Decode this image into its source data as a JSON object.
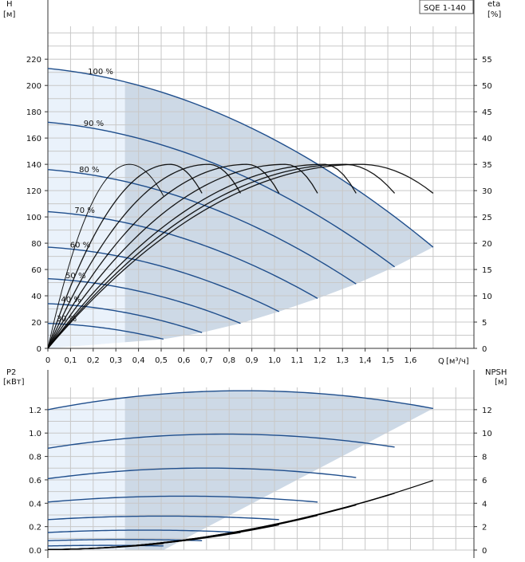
{
  "colors": {
    "grid": "#c8c8c8",
    "curve": "#1f4e8c",
    "region_light": "#eaf2fb",
    "region_dark": "#cdd9e6",
    "eff": "#000000"
  },
  "chart_data": [
    {
      "type": "line",
      "name": "head",
      "title": "SQE 1-140",
      "ylabel": "H",
      "yunit": "[м]",
      "y2label": "eta",
      "y2unit": "[%]",
      "xlabel": "Q",
      "xunit": "[м³/ч]",
      "xlim": [
        0,
        1.88
      ],
      "ylim": [
        0,
        245
      ],
      "y2lim": [
        0,
        61.25
      ],
      "xticks": [
        0,
        0.1,
        0.2,
        0.3,
        0.4,
        0.5,
        0.6,
        0.7,
        0.8,
        0.9,
        1.0,
        1.1,
        1.2,
        1.3,
        1.4,
        1.5,
        1.6
      ],
      "xtick_labels": [
        "0",
        "0,1",
        "0,2",
        "0,3",
        "0,4",
        "0,5",
        "0,6",
        "0,7",
        "0,8",
        "0,9",
        "1,0",
        "1,1",
        "1,2",
        "1,3",
        "1,4",
        "1,5",
        "1,6"
      ],
      "yticks": [
        0,
        20,
        40,
        60,
        80,
        100,
        120,
        140,
        160,
        180,
        200,
        220
      ],
      "y2ticks": [
        0,
        5,
        10,
        15,
        20,
        25,
        30,
        35,
        40,
        45,
        50,
        55
      ],
      "light_region_end_x": 0.34,
      "series": [
        {
          "name": "100 %",
          "shutoff": 213,
          "qmax": 1.7,
          "hend": 77,
          "label_x": 0.25
        },
        {
          "name": "90 %",
          "shutoff": 172,
          "qmax": 1.53,
          "hend": 62,
          "label_x": 0.22
        },
        {
          "name": "80 %",
          "shutoff": 136,
          "qmax": 1.36,
          "hend": 49,
          "label_x": 0.2
        },
        {
          "name": "70 %",
          "shutoff": 104,
          "qmax": 1.19,
          "hend": 38,
          "label_x": 0.18
        },
        {
          "name": "60 %",
          "shutoff": 77,
          "qmax": 1.02,
          "hend": 28,
          "label_x": 0.16
        },
        {
          "name": "50 %",
          "shutoff": 53,
          "qmax": 0.85,
          "hend": 19,
          "label_x": 0.14
        },
        {
          "name": "40 %",
          "shutoff": 34,
          "qmax": 0.68,
          "hend": 12,
          "label_x": 0.12
        },
        {
          "name": "30 %",
          "shutoff": 19,
          "qmax": 0.51,
          "hend": 7,
          "label_x": 0.1
        }
      ],
      "efficiency": [
        {
          "peak_x": 0.36,
          "peak": 35,
          "end_x": 0.51,
          "end": 29
        },
        {
          "peak_x": 0.54,
          "peak": 35,
          "end_x": 0.68,
          "end": 29.5
        },
        {
          "peak_x": 0.71,
          "peak": 35,
          "end_x": 0.85,
          "end": 29.5
        },
        {
          "peak_x": 0.88,
          "peak": 35,
          "end_x": 1.02,
          "end": 29.5
        },
        {
          "peak_x": 1.05,
          "peak": 35,
          "end_x": 1.19,
          "end": 29.5
        },
        {
          "peak_x": 1.22,
          "peak": 35,
          "end_x": 1.36,
          "end": 29.5
        },
        {
          "peak_x": 1.31,
          "peak": 35,
          "end_x": 1.53,
          "end": 29.5
        },
        {
          "peak_x": 1.38,
          "peak": 35,
          "end_x": 1.7,
          "end": 29.5
        }
      ]
    },
    {
      "type": "line",
      "name": "power",
      "ylabel": "P2",
      "yunit": "[кВт]",
      "y2label": "NPSH",
      "y2unit": "[м]",
      "xlim": [
        0,
        1.88
      ],
      "ylim": [
        0,
        1.39
      ],
      "y2lim": [
        0,
        13.9
      ],
      "yticks": [
        0,
        0.2,
        0.4,
        0.6,
        0.8,
        1.0,
        1.2
      ],
      "ytick_labels": [
        "0.0",
        "0.2",
        "0.4",
        "0.6",
        "0.8",
        "1.0",
        "1.2"
      ],
      "y2ticks": [
        0,
        2,
        4,
        6,
        8,
        10,
        12
      ],
      "series": [
        {
          "start": 1.2,
          "peak_x": 0.95,
          "peak": 1.36,
          "qmax": 1.7,
          "end": 1.21
        },
        {
          "start": 0.87,
          "peak_x": 0.85,
          "peak": 0.99,
          "qmax": 1.53,
          "end": 0.88
        },
        {
          "start": 0.61,
          "peak_x": 0.76,
          "peak": 0.7,
          "qmax": 1.36,
          "end": 0.62
        },
        {
          "start": 0.41,
          "peak_x": 0.66,
          "peak": 0.46,
          "qmax": 1.19,
          "end": 0.41
        },
        {
          "start": 0.26,
          "peak_x": 0.56,
          "peak": 0.29,
          "qmax": 1.02,
          "end": 0.26
        },
        {
          "start": 0.15,
          "peak_x": 0.47,
          "peak": 0.17,
          "qmax": 0.85,
          "end": 0.15
        },
        {
          "start": 0.08,
          "peak_x": 0.37,
          "peak": 0.09,
          "qmax": 0.68,
          "end": 0.08
        },
        {
          "start": 0.035,
          "peak_x": 0.28,
          "peak": 0.04,
          "qmax": 0.51,
          "end": 0.035
        }
      ],
      "npsh": [
        {
          "qmax": 1.7,
          "end": 5.9
        },
        {
          "qmax": 1.53,
          "end": 4.8
        },
        {
          "qmax": 1.36,
          "end": 3.8
        },
        {
          "qmax": 1.19,
          "end": 2.9
        },
        {
          "qmax": 1.02,
          "end": 2.1
        },
        {
          "qmax": 0.85,
          "end": 1.45
        },
        {
          "qmax": 0.68,
          "end": 0.95
        },
        {
          "qmax": 0.51,
          "end": 0.5
        }
      ]
    }
  ]
}
